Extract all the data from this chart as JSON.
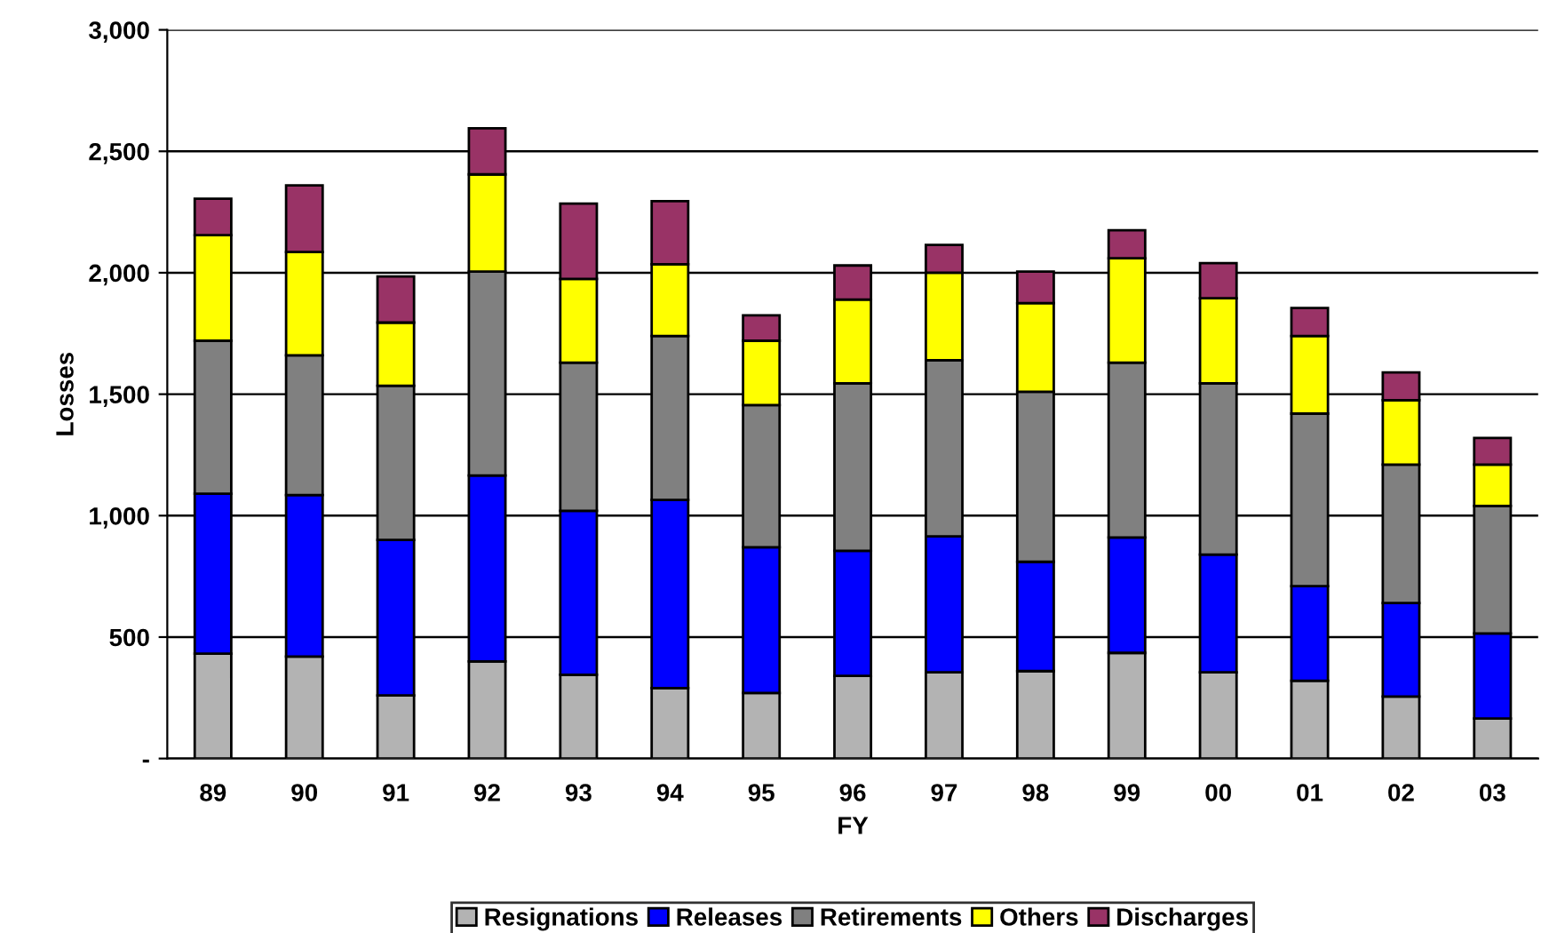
{
  "chart_data": {
    "type": "bar",
    "stacked": true,
    "xlabel": "FY",
    "ylabel": "Losses",
    "categories": [
      "89",
      "90",
      "91",
      "92",
      "93",
      "94",
      "95",
      "96",
      "97",
      "98",
      "99",
      "00",
      "01",
      "02",
      "03"
    ],
    "series": [
      {
        "name": "Resignations",
        "color": "#b3b3b3",
        "values": [
          432,
          420,
          260,
          400,
          345,
          290,
          270,
          340,
          355,
          360,
          435,
          355,
          320,
          255,
          165
        ]
      },
      {
        "name": "Releases",
        "color": "#0000ff",
        "values": [
          658,
          665,
          640,
          765,
          675,
          775,
          600,
          515,
          560,
          450,
          475,
          485,
          390,
          385,
          350
        ]
      },
      {
        "name": "Retirements",
        "color": "#808080",
        "values": [
          630,
          575,
          635,
          840,
          610,
          675,
          585,
          690,
          725,
          700,
          720,
          705,
          710,
          570,
          525
        ]
      },
      {
        "name": "Others",
        "color": "#ffff00",
        "values": [
          435,
          425,
          260,
          400,
          345,
          295,
          265,
          345,
          360,
          365,
          430,
          350,
          320,
          265,
          170
        ]
      },
      {
        "name": "Discharges",
        "color": "#993366",
        "values": [
          150,
          275,
          190,
          190,
          310,
          260,
          105,
          140,
          115,
          130,
          115,
          145,
          115,
          115,
          110
        ]
      }
    ],
    "ylim": [
      0,
      3000
    ],
    "yticks": [
      {
        "value": 0,
        "label": "-"
      },
      {
        "value": 500,
        "label": "500"
      },
      {
        "value": 1000,
        "label": "1,000"
      },
      {
        "value": 1500,
        "label": "1,500"
      },
      {
        "value": 2000,
        "label": "2,000"
      },
      {
        "value": 2500,
        "label": "2,500"
      },
      {
        "value": 3000,
        "label": "3,000"
      }
    ],
    "grid": "y",
    "legend": "bottom"
  }
}
